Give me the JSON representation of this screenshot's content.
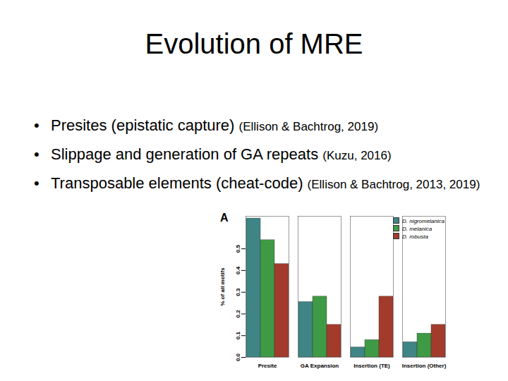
{
  "slide": {
    "title": "Evolution of MRE",
    "bullets": [
      {
        "text": "Presites (epistatic capture)",
        "citation": "(Ellison & Bachtrog, 2019)"
      },
      {
        "text": "Slippage and generation of GA repeats",
        "citation": "(Kuzu, 2016)"
      },
      {
        "text": "Transposable elements (cheat-code)",
        "citation": "(Ellison & Bachtrog, 2013, 2019)"
      }
    ]
  },
  "chart_data": {
    "type": "bar",
    "annotations": [
      "A"
    ],
    "y_label": "% of all motifs",
    "categories": [
      "Presite",
      "GA Expansion",
      "Insertion (TE)",
      "Insertion (Other)"
    ],
    "series": [
      {
        "name": "D. nigromelanica",
        "color": "#3f8585",
        "values": [
          0.64,
          0.255,
          0.046,
          0.07
        ]
      },
      {
        "name": "D. melanica",
        "color": "#3f9a45",
        "values": [
          0.54,
          0.28,
          0.08,
          0.11
        ]
      },
      {
        "name": "D. robusta",
        "color": "#a33b2c",
        "values": [
          0.43,
          0.15,
          0.28,
          0.15
        ]
      }
    ],
    "ylim": [
      0,
      0.65
    ],
    "yticks": [
      {
        "value": 0,
        "label": "0.0"
      },
      0.1,
      0.2,
      0.3,
      0.4,
      0.5
    ],
    "legend": "top-right"
  }
}
